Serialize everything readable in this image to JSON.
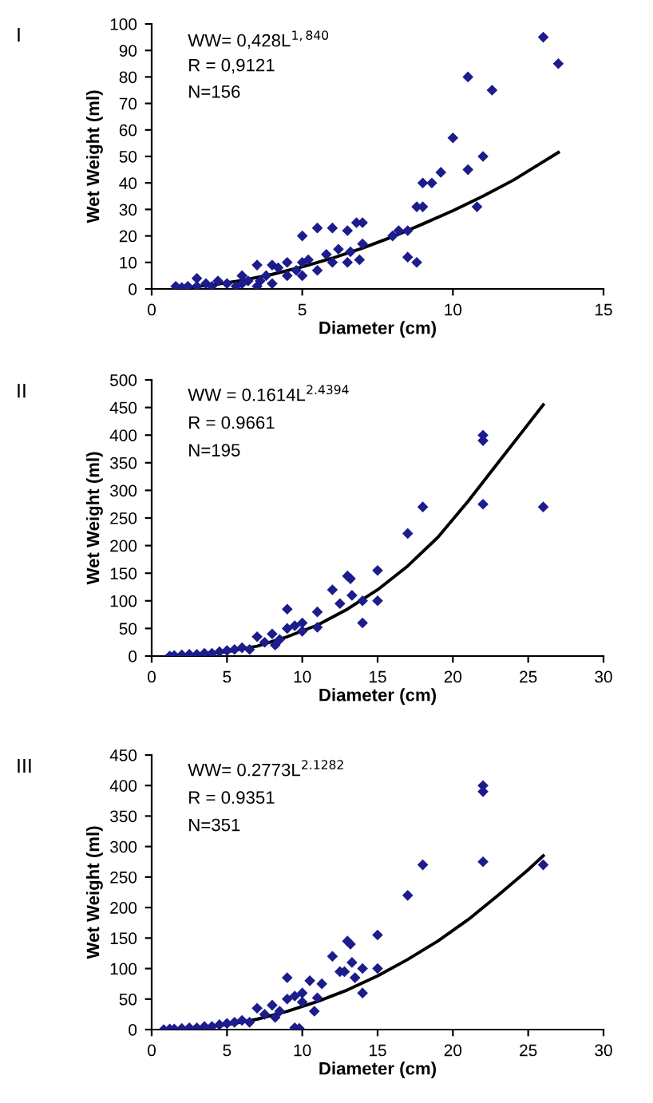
{
  "chart_data": [
    {
      "type": "scatter",
      "title": "I",
      "xlabel": "Diameter (cm)",
      "ylabel": "Wet Weight (ml)",
      "xlim": [
        0,
        15
      ],
      "xticks": [
        0,
        5,
        10,
        15
      ],
      "ylim": [
        0,
        100
      ],
      "yticks": [
        0,
        10,
        20,
        30,
        40,
        50,
        60,
        70,
        80,
        90,
        100
      ],
      "grid": false,
      "legend": false,
      "annotations": [
        "WW= 0,428L$^{1,840}$",
        "R = 0,9121",
        "N=156"
      ],
      "series": [
        {
          "marker": "diamond",
          "color": "#1c1c8c",
          "x": [
            0.8,
            1.0,
            1.2,
            1.5,
            1.5,
            1.8,
            2,
            2.2,
            2.5,
            2.8,
            3,
            3,
            3.2,
            3.5,
            3.5,
            3.6,
            3.8,
            4,
            4,
            4.2,
            4.5,
            4.5,
            4.8,
            5,
            5,
            5,
            5.2,
            5.5,
            5.5,
            5.8,
            6,
            6,
            6.2,
            6.5,
            6.5,
            6.6,
            6.8,
            6.9,
            7,
            7,
            8,
            8.2,
            8.5,
            8.5,
            8.8,
            8.8,
            9,
            9,
            9.3,
            9.6,
            10,
            10.5,
            10.5,
            10.8,
            11,
            11.3,
            13,
            13.5
          ],
          "values": [
            1,
            0.5,
            1,
            4,
            1,
            2,
            1,
            3,
            2,
            1,
            5,
            2,
            3,
            9,
            1,
            3,
            5,
            9,
            2,
            8,
            10,
            5,
            7,
            20,
            10,
            5,
            11,
            23,
            7,
            13,
            23,
            10,
            15,
            22,
            10,
            14,
            25,
            11,
            25,
            17,
            20,
            22,
            22,
            12,
            31,
            10,
            31,
            40,
            40,
            44,
            57,
            80,
            45,
            31,
            50,
            75,
            95,
            85
          ]
        },
        {
          "type": "line",
          "marker": "none",
          "line_style": "solid",
          "color": "#000000",
          "x": [
            1,
            2,
            3,
            4,
            5,
            6,
            7,
            8,
            9,
            10,
            11,
            12,
            13,
            13.5
          ],
          "values": [
            0.4,
            1.5,
            3.2,
            5.5,
            8.3,
            11.6,
            15.4,
            19.7,
            24.5,
            29.5,
            35,
            41,
            48,
            51.5
          ]
        }
      ]
    },
    {
      "type": "scatter",
      "title": "II",
      "xlabel": "Diameter (cm)",
      "ylabel": "Wet Weight (ml)",
      "xlim": [
        0,
        30
      ],
      "xticks": [
        0,
        5,
        10,
        15,
        20,
        25,
        30
      ],
      "ylim": [
        0,
        500
      ],
      "yticks": [
        0,
        50,
        100,
        150,
        200,
        250,
        300,
        350,
        400,
        450,
        500
      ],
      "grid": false,
      "legend": false,
      "annotations": [
        "WW = 0.1614L$^{2.4394}$",
        "R = 0.9661",
        "N=195"
      ],
      "series": [
        {
          "marker": "diamond",
          "color": "#1c1c8c",
          "x": [
            1.2,
            1.5,
            2,
            2.5,
            3,
            3.5,
            4,
            4.5,
            5,
            5.5,
            6,
            6.5,
            7,
            7.5,
            8,
            8.2,
            8.5,
            9,
            9,
            9.5,
            10,
            10,
            11,
            11,
            12,
            12.5,
            13,
            13.2,
            13.3,
            14,
            14,
            15,
            15,
            17,
            18,
            22,
            22,
            22,
            26
          ],
          "values": [
            0,
            1,
            2,
            3,
            3,
            5,
            5,
            8,
            10,
            12,
            15,
            12,
            35,
            25,
            40,
            20,
            30,
            85,
            50,
            55,
            60,
            45,
            80,
            52,
            120,
            95,
            145,
            140,
            110,
            100,
            60,
            155,
            100,
            222,
            270,
            400,
            390,
            275,
            270
          ]
        },
        {
          "type": "line",
          "marker": "none",
          "line_style": "solid",
          "color": "#000000",
          "x": [
            1,
            3,
            5,
            7,
            9,
            11,
            13,
            15,
            17,
            19,
            21,
            23,
            25,
            26
          ],
          "values": [
            0,
            2,
            8,
            18,
            35,
            56,
            85,
            120,
            163,
            215,
            280,
            350,
            420,
            455
          ]
        }
      ]
    },
    {
      "type": "scatter",
      "title": "III",
      "xlabel": "Diameter (cm)",
      "ylabel": "Wet Weight (ml)",
      "xlim": [
        0,
        30
      ],
      "xticks": [
        0,
        5,
        10,
        15,
        20,
        25,
        30
      ],
      "ylim": [
        0,
        450
      ],
      "yticks": [
        0,
        50,
        100,
        150,
        200,
        250,
        300,
        350,
        400,
        450
      ],
      "grid": false,
      "legend": false,
      "annotations": [
        "WW= 0.2773L$^{2.1282}$",
        "R = 0.9351",
        "N=351"
      ],
      "series": [
        {
          "marker": "diamond",
          "color": "#1c1c8c",
          "x": [
            0.8,
            1.2,
            1.5,
            2,
            2.5,
            3,
            3.5,
            4,
            4.5,
            5,
            5.5,
            6,
            6.5,
            7,
            7.5,
            8,
            8.2,
            8.5,
            9,
            9,
            9.5,
            9.5,
            9.8,
            10,
            10,
            10.5,
            10.8,
            11,
            11.3,
            12,
            12.5,
            12.8,
            13,
            13.2,
            13.3,
            13.5,
            14,
            14,
            15,
            15,
            17,
            18,
            22,
            22,
            22,
            26
          ],
          "values": [
            0,
            1,
            1,
            2,
            3,
            3,
            5,
            5,
            8,
            10,
            12,
            15,
            12,
            35,
            25,
            40,
            20,
            30,
            85,
            50,
            55,
            3,
            2,
            60,
            45,
            80,
            30,
            52,
            75,
            120,
            95,
            95,
            145,
            140,
            110,
            85,
            100,
            60,
            155,
            100,
            220,
            270,
            400,
            390,
            275,
            270
          ]
        },
        {
          "type": "line",
          "marker": "none",
          "line_style": "solid",
          "color": "#000000",
          "x": [
            1,
            3,
            5,
            7,
            9,
            11,
            13,
            15,
            17,
            19,
            21,
            23,
            25,
            26
          ],
          "values": [
            0,
            3,
            8,
            17,
            30,
            46,
            65,
            88,
            115,
            145,
            180,
            220,
            262,
            285
          ]
        }
      ]
    }
  ]
}
